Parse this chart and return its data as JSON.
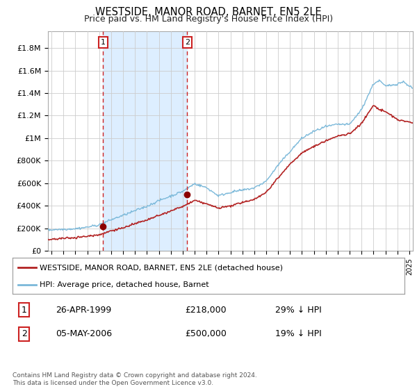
{
  "title": "WESTSIDE, MANOR ROAD, BARNET, EN5 2LE",
  "subtitle": "Price paid vs. HM Land Registry's House Price Index (HPI)",
  "title_fontsize": 10.5,
  "subtitle_fontsize": 9,
  "ylabel_ticks": [
    "£0",
    "£200K",
    "£400K",
    "£600K",
    "£800K",
    "£1M",
    "£1.2M",
    "£1.4M",
    "£1.6M",
    "£1.8M"
  ],
  "ytick_vals": [
    0,
    200000,
    400000,
    600000,
    800000,
    1000000,
    1200000,
    1400000,
    1600000,
    1800000
  ],
  "ylim": [
    0,
    1950000
  ],
  "xlim_start": 1994.7,
  "xlim_end": 2025.3,
  "hpi_color": "#7ab8d9",
  "price_color": "#b22222",
  "marker_color": "#8b0000",
  "vline_color": "#cc2222",
  "shade_color": "#ddeeff",
  "sale1_x": 1999.32,
  "sale1_y": 218000,
  "sale2_x": 2006.37,
  "sale2_y": 500000,
  "legend_line1": "WESTSIDE, MANOR ROAD, BARNET, EN5 2LE (detached house)",
  "legend_line2": "HPI: Average price, detached house, Barnet",
  "table_row1": [
    "1",
    "26-APR-1999",
    "£218,000",
    "29% ↓ HPI"
  ],
  "table_row2": [
    "2",
    "05-MAY-2006",
    "£500,000",
    "19% ↓ HPI"
  ],
  "footnote": "Contains HM Land Registry data © Crown copyright and database right 2024.\nThis data is licensed under the Open Government Licence v3.0.",
  "background_color": "#ffffff",
  "grid_color": "#cccccc"
}
